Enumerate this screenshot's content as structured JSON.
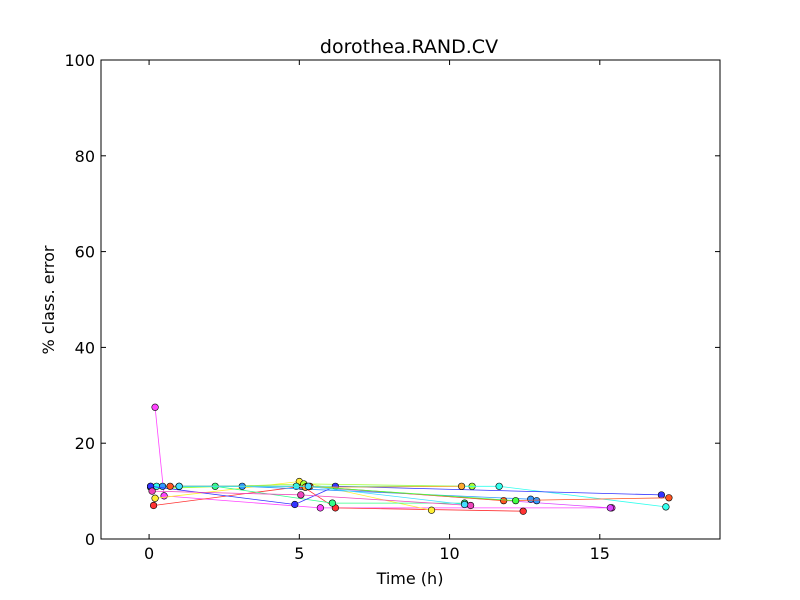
{
  "chart_data": {
    "type": "line",
    "title": "dorothea.RAND.CV",
    "xlabel": "Time (h)",
    "ylabel": "% class. error",
    "xlim": [
      -1.6,
      19
    ],
    "ylim": [
      0,
      100
    ],
    "xticks": [
      0,
      5,
      10,
      15
    ],
    "yticks": [
      0,
      20,
      40,
      60,
      80,
      100
    ],
    "grid": false,
    "markers": true,
    "series": [
      {
        "color": "#ff44ff",
        "points": [
          [
            0.2,
            27.5
          ],
          [
            0.5,
            9.0
          ],
          [
            5.7,
            6.5
          ],
          [
            15.4,
            6.5
          ]
        ]
      },
      {
        "color": "#dd44ff",
        "points": [
          [
            0.05,
            11.0
          ],
          [
            5.05,
            11.0
          ],
          [
            15.35,
            6.5
          ]
        ]
      },
      {
        "color": "#ff3333",
        "points": [
          [
            0.15,
            7.0
          ],
          [
            5.1,
            11.0
          ],
          [
            6.2,
            6.5
          ],
          [
            12.45,
            5.8
          ]
        ]
      },
      {
        "color": "#ffee33",
        "points": [
          [
            0.2,
            8.5
          ],
          [
            5.0,
            12.0
          ],
          [
            9.4,
            6.0
          ]
        ]
      },
      {
        "color": "#aaff33",
        "points": [
          [
            0.1,
            10.5
          ],
          [
            5.15,
            11.5
          ],
          [
            10.75,
            11.0
          ]
        ]
      },
      {
        "color": "#33ff88",
        "points": [
          [
            0.05,
            10.8
          ],
          [
            2.2,
            11.0
          ],
          [
            6.1,
            7.5
          ],
          [
            10.5,
            7.5
          ]
        ]
      },
      {
        "color": "#33ffee",
        "points": [
          [
            0.25,
            11.0
          ],
          [
            4.9,
            11.0
          ],
          [
            11.65,
            11.0
          ],
          [
            17.2,
            6.7
          ]
        ]
      },
      {
        "color": "#3399ff",
        "points": [
          [
            0.45,
            11.0
          ],
          [
            3.1,
            11.0
          ],
          [
            12.7,
            8.3
          ],
          [
            12.9,
            8.0
          ]
        ]
      },
      {
        "color": "#3333ff",
        "points": [
          [
            0.05,
            11.0
          ],
          [
            4.85,
            7.2
          ],
          [
            6.2,
            11.0
          ],
          [
            17.05,
            9.2
          ]
        ]
      },
      {
        "color": "#ff5522",
        "points": [
          [
            0.7,
            11.0
          ],
          [
            5.35,
            11.0
          ],
          [
            11.8,
            8.0
          ],
          [
            17.3,
            8.6
          ]
        ]
      },
      {
        "color": "#ee44bb",
        "points": [
          [
            0.1,
            10.0
          ],
          [
            5.05,
            9.2
          ],
          [
            10.7,
            7.0
          ]
        ]
      },
      {
        "color": "#44ff44",
        "points": [
          [
            1.0,
            11.0
          ],
          [
            5.25,
            11.0
          ],
          [
            12.2,
            8.0
          ]
        ]
      },
      {
        "color": "#ffaa33",
        "points": [
          [
            5.2,
            10.8
          ],
          [
            10.4,
            11.0
          ]
        ]
      },
      {
        "color": "#44ddff",
        "points": [
          [
            1.0,
            11.0
          ],
          [
            5.3,
            11.0
          ],
          [
            10.5,
            7.2
          ]
        ]
      }
    ]
  }
}
